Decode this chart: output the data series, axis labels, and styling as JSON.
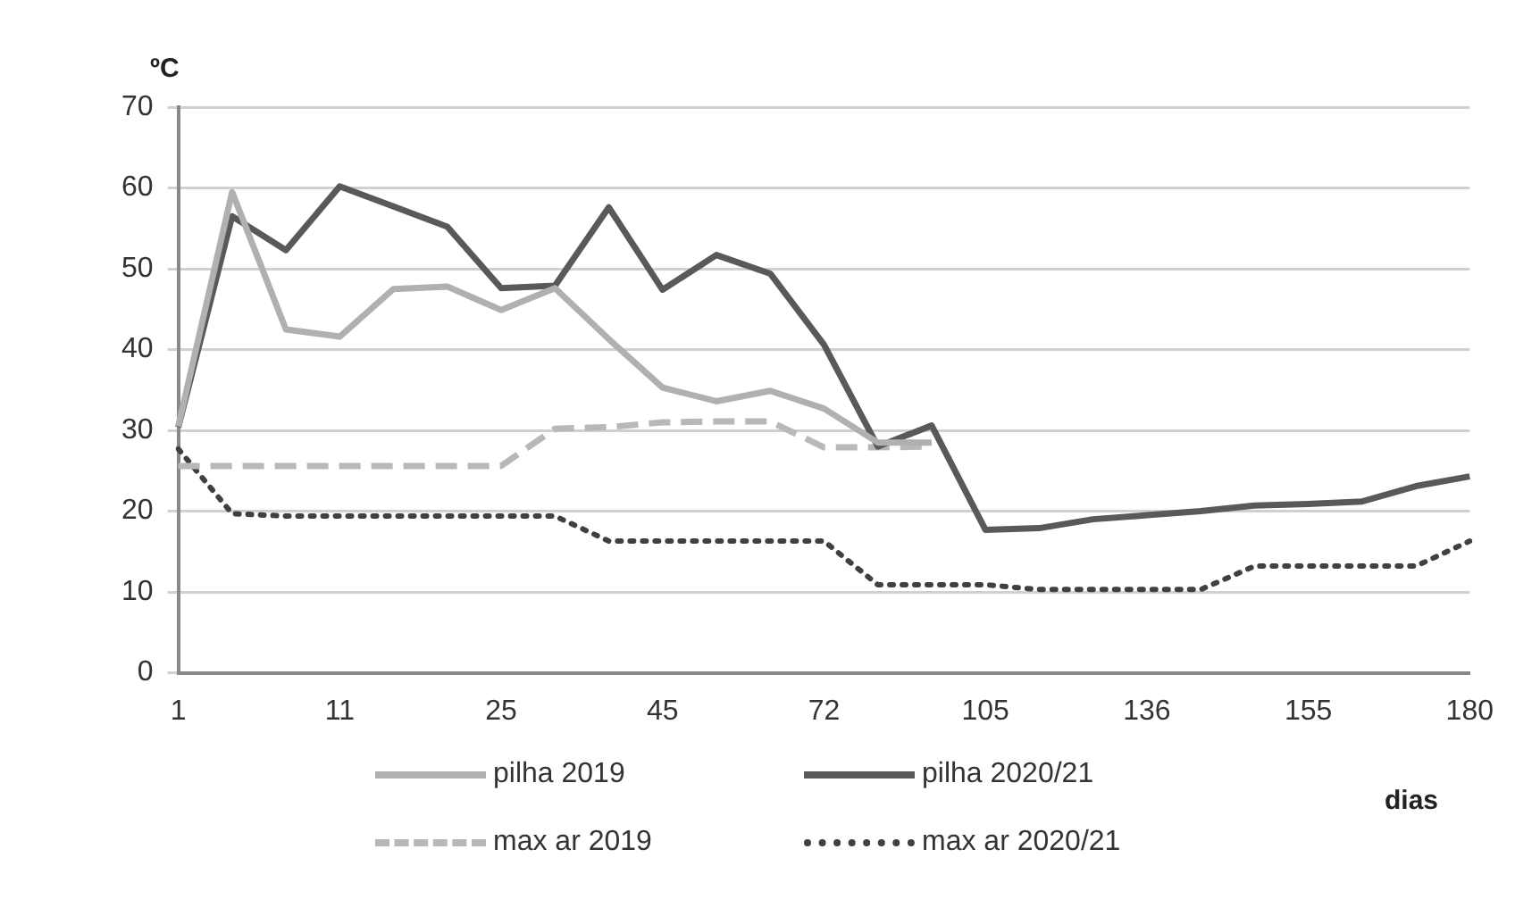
{
  "chart_data": {
    "type": "line",
    "ylabel": "ºC",
    "xlabel": "dias",
    "categories": [
      "1",
      null,
      null,
      "11",
      null,
      null,
      "25",
      null,
      null,
      "45",
      null,
      null,
      "72",
      null,
      null,
      "105",
      null,
      null,
      "136",
      null,
      null,
      "155",
      null,
      null,
      "180"
    ],
    "series": [
      {
        "name": "pilha 2019",
        "color": "#b0b0b0",
        "line_style": "solid",
        "values": [
          30.5,
          59.5,
          42.5,
          41.6,
          47.5,
          47.8,
          44.9,
          47.6,
          41.3,
          35.3,
          33.6,
          34.9,
          32.7,
          28.5,
          28.5,
          null,
          null,
          null,
          null,
          null,
          null,
          null,
          null,
          null,
          null
        ]
      },
      {
        "name": "pilha 2020/21",
        "color": "#595959",
        "line_style": "solid",
        "values": [
          30.4,
          56.5,
          52.3,
          60.2,
          57.7,
          55.2,
          47.6,
          47.9,
          57.6,
          47.4,
          51.7,
          49.4,
          40.6,
          28,
          30.6,
          17.7,
          17.9,
          19,
          19.5,
          20,
          20.7,
          20.9,
          21.2,
          23.1,
          24.3
        ]
      },
      {
        "name": "max ar 2019",
        "color": "#b8b8b8",
        "line_style": "dashed",
        "values": [
          25.6,
          25.6,
          25.6,
          25.6,
          25.6,
          25.6,
          25.6,
          30.2,
          30.4,
          31,
          31.1,
          31.1,
          27.9,
          27.9,
          28,
          null,
          null,
          null,
          null,
          null,
          null,
          null,
          null,
          null,
          null
        ]
      },
      {
        "name": "max ar 2020/21",
        "color": "#404040",
        "line_style": "dotted",
        "values": [
          27.7,
          19.7,
          19.4,
          19.4,
          19.4,
          19.4,
          19.4,
          19.4,
          16.3,
          16.3,
          16.3,
          16.3,
          16.3,
          10.9,
          10.9,
          10.9,
          10.3,
          10.3,
          10.3,
          10.3,
          13.2,
          13.2,
          13.2,
          13.2,
          16.3
        ]
      }
    ],
    "ylim": [
      0,
      70
    ],
    "yticks": [
      0,
      10,
      20,
      30,
      40,
      50,
      60,
      70
    ],
    "grid": "y",
    "legend": "bottom",
    "marker": "none"
  }
}
